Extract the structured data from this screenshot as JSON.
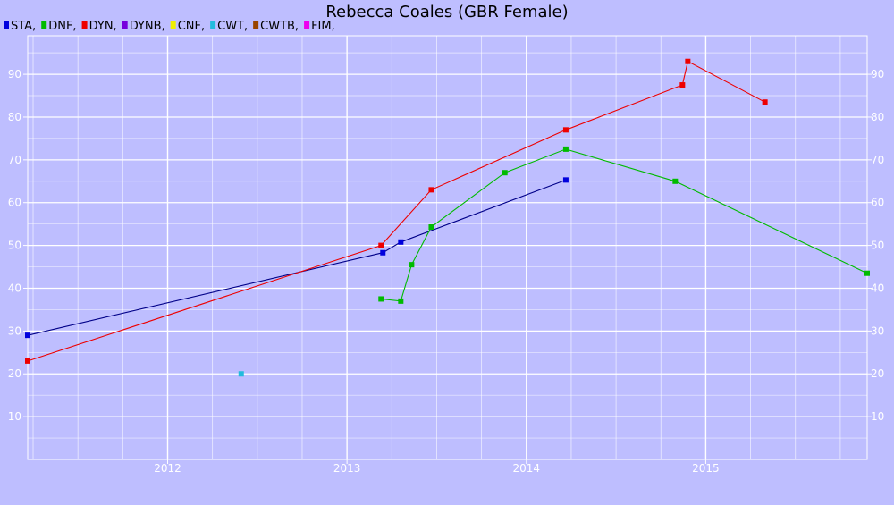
{
  "chart_data": {
    "type": "line",
    "title": "Rebecca Coales (GBR Female)",
    "xlabel": "",
    "ylabel": "",
    "xlim": [
      2011.22,
      2015.9
    ],
    "ylim": [
      0,
      99
    ],
    "x_ticks": [
      2012,
      2013,
      2014,
      2015
    ],
    "x_tick_labels": [
      "2012",
      "2013",
      "2014",
      "2015"
    ],
    "y_ticks": [
      10,
      20,
      30,
      40,
      50,
      60,
      70,
      80,
      90
    ],
    "y_tick_labels": [
      "10",
      "20",
      "30",
      "40",
      "50",
      "60",
      "70",
      "80",
      "90"
    ],
    "grid": true,
    "legend_position": "top-left",
    "legend": [
      {
        "name": "STA,",
        "color": "#0000dd"
      },
      {
        "name": "DNF,",
        "color": "#00bb00"
      },
      {
        "name": "DYN,",
        "color": "#ee0000"
      },
      {
        "name": "DYNB,",
        "color": "#7700dd"
      },
      {
        "name": "CNF,",
        "color": "#eeee00"
      },
      {
        "name": "CWT,",
        "color": "#22bbdd"
      },
      {
        "name": "CWTB,",
        "color": "#994400"
      },
      {
        "name": "FIM,",
        "color": "#ee00ee"
      }
    ],
    "series": [
      {
        "name": "STA",
        "color": "#0000dd",
        "line_color": "#000088",
        "x": [
          2011.22,
          2013.2,
          2013.3,
          2014.22
        ],
        "y": [
          29,
          48.3,
          50.8,
          65.3
        ]
      },
      {
        "name": "DNF",
        "color": "#00bb00",
        "line_color": "#00bb00",
        "x": [
          2013.19,
          2013.3,
          2013.36,
          2013.47,
          2013.88,
          2014.22,
          2014.83,
          2015.9
        ],
        "y": [
          37.5,
          37,
          45.5,
          54.3,
          67,
          72.5,
          65,
          43.5
        ]
      },
      {
        "name": "DYN",
        "color": "#ee0000",
        "line_color": "#ee0000",
        "x": [
          2011.22,
          2013.19,
          2013.47,
          2014.22,
          2014.87,
          2014.9,
          2015.33
        ],
        "y": [
          23,
          50,
          63,
          77,
          87.5,
          93,
          83.5
        ]
      },
      {
        "name": "CWT",
        "color": "#22bbdd",
        "line_color": "#22bbdd",
        "x": [
          2012.41
        ],
        "y": [
          20
        ]
      }
    ]
  }
}
